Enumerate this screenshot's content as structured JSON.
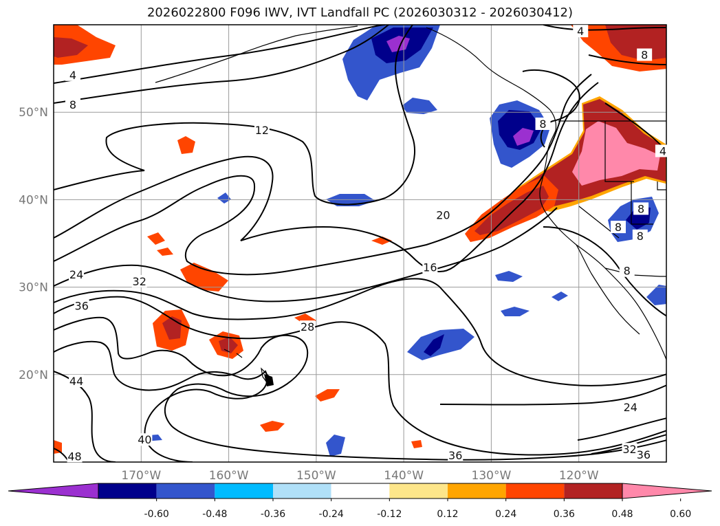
{
  "title": "2026022800 F096 IWV, IVT Landfall PC (2026030312 - 2026030412)",
  "colors": {
    "frame": "#000000",
    "grid": "#9a9a9a",
    "contour": "#000000",
    "coast": "#000000",
    "purple": "#9b30d0",
    "navy": "#00008b",
    "royal_blue": "#3355cc",
    "deep_sky": "#00bbff",
    "light_sky": "#b0e0f8",
    "white": "#ffffff",
    "khaki": "#fde68a",
    "orange": "#ffa500",
    "orange_red": "#ff4500",
    "firebrick": "#b22222",
    "pink": "#ff88aa"
  },
  "chart_data": {
    "type": "contour-map",
    "projection": "PlateCarree",
    "lon_range": [
      -180,
      -110
    ],
    "lat_range": [
      10,
      60
    ],
    "xaxis_ticks": [
      "170°W",
      "160°W",
      "150°W",
      "140°W",
      "130°W",
      "120°W"
    ],
    "xaxis_tick_values": [
      -170,
      -160,
      -150,
      -140,
      -130,
      -120
    ],
    "yaxis_ticks": [
      "20°N",
      "30°N",
      "40°N",
      "50°N"
    ],
    "yaxis_tick_values": [
      20,
      30,
      40,
      50
    ],
    "contour_labels": [
      {
        "text": "4",
        "lon": -177.8,
        "lat": 54.2
      },
      {
        "text": "8",
        "lon": -177.8,
        "lat": 50.8
      },
      {
        "text": "12",
        "lon": -156.2,
        "lat": 47.9
      },
      {
        "text": "20",
        "lon": -135.5,
        "lat": 38.2
      },
      {
        "text": "16",
        "lon": -137.0,
        "lat": 32.2
      },
      {
        "text": "24",
        "lon": -177.4,
        "lat": 31.4
      },
      {
        "text": "32",
        "lon": -170.2,
        "lat": 30.6
      },
      {
        "text": "36",
        "lon": -176.8,
        "lat": 27.8
      },
      {
        "text": "28",
        "lon": -151.0,
        "lat": 25.4
      },
      {
        "text": "44",
        "lon": -177.4,
        "lat": 19.2
      },
      {
        "text": "40",
        "lon": -169.6,
        "lat": 12.5
      },
      {
        "text": "48",
        "lon": -177.6,
        "lat": 10.6
      },
      {
        "text": "36",
        "lon": -134.1,
        "lat": 10.7
      },
      {
        "text": "32",
        "lon": -114.2,
        "lat": 11.4
      },
      {
        "text": "36",
        "lon": -112.6,
        "lat": 10.8
      },
      {
        "text": "24",
        "lon": -114.1,
        "lat": 16.2
      },
      {
        "text": "4",
        "lon": -119.8,
        "lat": 59.2
      },
      {
        "text": "8",
        "lon": -112.5,
        "lat": 56.5
      },
      {
        "text": "8",
        "lon": -124.1,
        "lat": 48.6
      },
      {
        "text": "4",
        "lon": -110.4,
        "lat": 45.5
      },
      {
        "text": "8",
        "lon": -112.9,
        "lat": 38.9
      },
      {
        "text": "8",
        "lon": -115.5,
        "lat": 36.8
      },
      {
        "text": "8",
        "lon": -113.0,
        "lat": 35.8
      },
      {
        "text": "8",
        "lon": -114.5,
        "lat": 31.8
      }
    ],
    "colorbar": {
      "ticks": [
        "-0.60",
        "-0.48",
        "-0.36",
        "-0.24",
        "-0.12",
        "0.12",
        "0.24",
        "0.36",
        "0.48",
        "0.60"
      ],
      "levels": [
        -0.6,
        -0.48,
        -0.36,
        -0.24,
        -0.12,
        0.12,
        0.24,
        0.36,
        0.48,
        0.6
      ],
      "extend": "both",
      "colors": [
        "#9b30d0",
        "#00008b",
        "#3355cc",
        "#00bbff",
        "#b0e0f8",
        "#ffffff",
        "#fde68a",
        "#ffa500",
        "#ff4500",
        "#b22222",
        "#ff88aa"
      ]
    },
    "shaded_regions": [
      {
        "name": "western-us-positive",
        "lon": -121.5,
        "lat": 44.5,
        "level": 0.6
      },
      {
        "name": "california-offshore-positive",
        "lon": -126.5,
        "lat": 39.5,
        "level": 0.48
      },
      {
        "name": "gulf-of-alaska-negative",
        "lon": -142.0,
        "lat": 56.0,
        "level": -0.6
      },
      {
        "name": "vancouver-island-negative",
        "lon": -127.5,
        "lat": 47.0,
        "level": -0.6
      },
      {
        "name": "hawaii-west-positive",
        "lon": -165.5,
        "lat": 25.0,
        "level": 0.48
      },
      {
        "name": "central-pacific-negative",
        "lon": -141.0,
        "lat": 21.8,
        "level": -0.48
      }
    ]
  }
}
